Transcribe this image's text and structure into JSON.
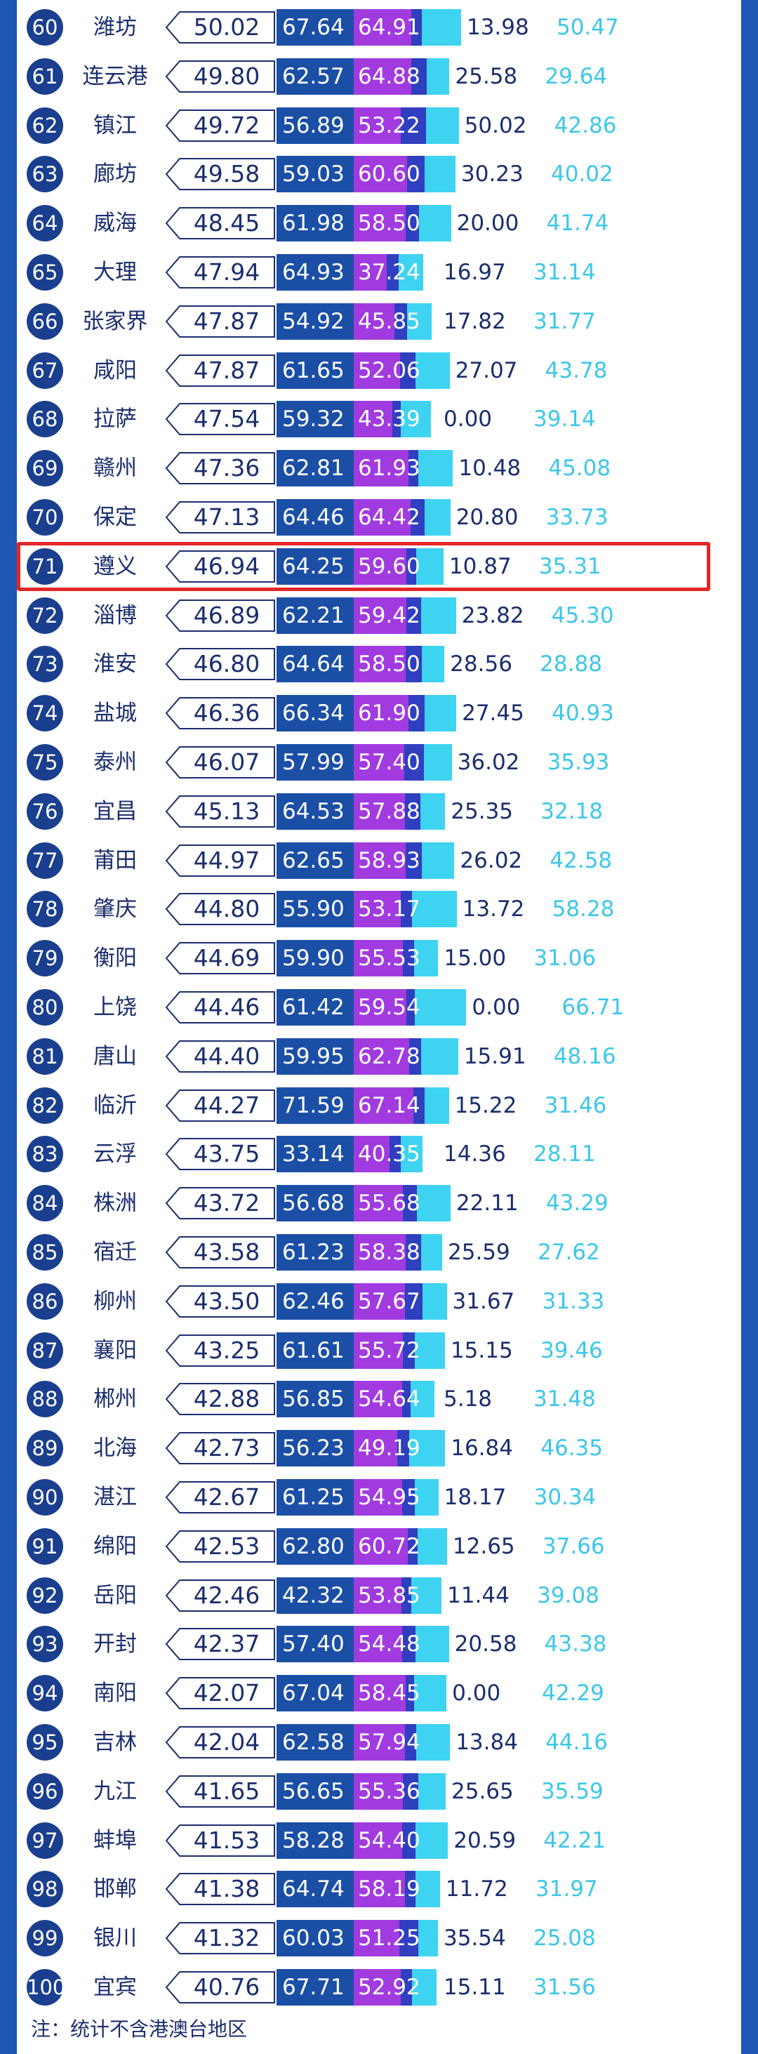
{
  "chart_data": {
    "type": "bar",
    "highlighted_rank": "71",
    "rows": [
      {
        "rank": "60",
        "city": "潍坊",
        "score": "50.02",
        "values": [
          "67.64",
          "64.91",
          "13.98",
          "50.47"
        ]
      },
      {
        "rank": "61",
        "city": "连云港",
        "score": "49.80",
        "values": [
          "62.57",
          "64.88",
          "25.58",
          "29.64"
        ]
      },
      {
        "rank": "62",
        "city": "镇江",
        "score": "49.72",
        "values": [
          "56.89",
          "53.22",
          "50.02",
          "42.86"
        ]
      },
      {
        "rank": "63",
        "city": "廊坊",
        "score": "49.58",
        "values": [
          "59.03",
          "60.60",
          "30.23",
          "40.02"
        ]
      },
      {
        "rank": "64",
        "city": "威海",
        "score": "48.45",
        "values": [
          "61.98",
          "58.50",
          "20.00",
          "41.74"
        ]
      },
      {
        "rank": "65",
        "city": "大理",
        "score": "47.94",
        "values": [
          "64.93",
          "37.24",
          "16.97",
          "31.14"
        ]
      },
      {
        "rank": "66",
        "city": "张家界",
        "score": "47.87",
        "values": [
          "54.92",
          "45.85",
          "17.82",
          "31.77"
        ]
      },
      {
        "rank": "67",
        "city": "咸阳",
        "score": "47.87",
        "values": [
          "61.65",
          "52.06",
          "27.07",
          "43.78"
        ]
      },
      {
        "rank": "68",
        "city": "拉萨",
        "score": "47.54",
        "values": [
          "59.32",
          "43.39",
          "0.00",
          "39.14"
        ]
      },
      {
        "rank": "69",
        "city": "赣州",
        "score": "47.36",
        "values": [
          "62.81",
          "61.93",
          "10.48",
          "45.08"
        ]
      },
      {
        "rank": "70",
        "city": "保定",
        "score": "47.13",
        "values": [
          "64.46",
          "64.42",
          "20.80",
          "33.73"
        ]
      },
      {
        "rank": "71",
        "city": "遵义",
        "score": "46.94",
        "values": [
          "64.25",
          "59.60",
          "10.87",
          "35.31"
        ]
      },
      {
        "rank": "72",
        "city": "淄博",
        "score": "46.89",
        "values": [
          "62.21",
          "59.42",
          "23.82",
          "45.30"
        ]
      },
      {
        "rank": "73",
        "city": "淮安",
        "score": "46.80",
        "values": [
          "64.64",
          "58.50",
          "28.56",
          "28.88"
        ]
      },
      {
        "rank": "74",
        "city": "盐城",
        "score": "46.36",
        "values": [
          "66.34",
          "61.90",
          "27.45",
          "40.93"
        ]
      },
      {
        "rank": "75",
        "city": "泰州",
        "score": "46.07",
        "values": [
          "57.99",
          "57.40",
          "36.02",
          "35.93"
        ]
      },
      {
        "rank": "76",
        "city": "宜昌",
        "score": "45.13",
        "values": [
          "64.53",
          "57.88",
          "25.35",
          "32.18"
        ]
      },
      {
        "rank": "77",
        "city": "莆田",
        "score": "44.97",
        "values": [
          "62.65",
          "58.93",
          "26.02",
          "42.58"
        ]
      },
      {
        "rank": "78",
        "city": "肇庆",
        "score": "44.80",
        "values": [
          "55.90",
          "53.17",
          "13.72",
          "58.28"
        ]
      },
      {
        "rank": "79",
        "city": "衡阳",
        "score": "44.69",
        "values": [
          "59.90",
          "55.53",
          "15.00",
          "31.06"
        ]
      },
      {
        "rank": "80",
        "city": "上饶",
        "score": "44.46",
        "values": [
          "61.42",
          "59.54",
          "0.00",
          "66.71"
        ]
      },
      {
        "rank": "81",
        "city": "唐山",
        "score": "44.40",
        "values": [
          "59.95",
          "62.78",
          "15.91",
          "48.16"
        ]
      },
      {
        "rank": "82",
        "city": "临沂",
        "score": "44.27",
        "values": [
          "71.59",
          "67.14",
          "15.22",
          "31.46"
        ]
      },
      {
        "rank": "83",
        "city": "云浮",
        "score": "43.75",
        "values": [
          "33.14",
          "40.35",
          "14.36",
          "28.11"
        ]
      },
      {
        "rank": "84",
        "city": "株洲",
        "score": "43.72",
        "values": [
          "56.68",
          "55.68",
          "22.11",
          "43.29"
        ]
      },
      {
        "rank": "85",
        "city": "宿迁",
        "score": "43.58",
        "values": [
          "61.23",
          "58.38",
          "25.59",
          "27.62"
        ]
      },
      {
        "rank": "86",
        "city": "柳州",
        "score": "43.50",
        "values": [
          "62.46",
          "57.67",
          "31.67",
          "31.33"
        ]
      },
      {
        "rank": "87",
        "city": "襄阳",
        "score": "43.25",
        "values": [
          "61.61",
          "55.72",
          "15.15",
          "39.46"
        ]
      },
      {
        "rank": "88",
        "city": "郴州",
        "score": "42.88",
        "values": [
          "56.85",
          "54.64",
          "5.18",
          "31.48"
        ]
      },
      {
        "rank": "89",
        "city": "北海",
        "score": "42.73",
        "values": [
          "56.23",
          "49.19",
          "16.84",
          "46.35"
        ]
      },
      {
        "rank": "90",
        "city": "湛江",
        "score": "42.67",
        "values": [
          "61.25",
          "54.95",
          "18.17",
          "30.34"
        ]
      },
      {
        "rank": "91",
        "city": "绵阳",
        "score": "42.53",
        "values": [
          "62.80",
          "60.72",
          "12.65",
          "37.66"
        ]
      },
      {
        "rank": "92",
        "city": "岳阳",
        "score": "42.46",
        "values": [
          "42.32",
          "53.85",
          "11.44",
          "39.08"
        ]
      },
      {
        "rank": "93",
        "city": "开封",
        "score": "42.37",
        "values": [
          "57.40",
          "54.48",
          "20.58",
          "43.38"
        ]
      },
      {
        "rank": "94",
        "city": "南阳",
        "score": "42.07",
        "values": [
          "67.04",
          "58.45",
          "0.00",
          "42.29"
        ]
      },
      {
        "rank": "95",
        "city": "吉林",
        "score": "42.04",
        "values": [
          "62.58",
          "57.94",
          "13.84",
          "44.16"
        ]
      },
      {
        "rank": "96",
        "city": "九江",
        "score": "41.65",
        "values": [
          "56.65",
          "55.36",
          "25.65",
          "35.59"
        ]
      },
      {
        "rank": "97",
        "city": "蚌埠",
        "score": "41.53",
        "values": [
          "58.28",
          "54.40",
          "20.59",
          "42.21"
        ]
      },
      {
        "rank": "98",
        "city": "邯郸",
        "score": "41.38",
        "values": [
          "64.74",
          "58.19",
          "11.72",
          "31.97"
        ]
      },
      {
        "rank": "99",
        "city": "银川",
        "score": "41.32",
        "values": [
          "60.03",
          "51.25",
          "35.54",
          "25.08"
        ]
      },
      {
        "rank": "100",
        "city": "宜宾",
        "score": "40.76",
        "values": [
          "67.71",
          "52.92",
          "15.11",
          "31.56"
        ]
      }
    ]
  },
  "colors": {
    "frame": "#1f57b6",
    "rank_badge": "#1b3f8f",
    "text_dark": "#1b2e6e",
    "seg1": "#1b4fa6",
    "seg2": "#a13be0",
    "seg3": "#2f3fbf",
    "seg4": "#3fd3f2",
    "value4_text": "#3cc7ea",
    "highlight_border": "#e32626"
  },
  "footnote": "注：统计不含港澳台地区"
}
